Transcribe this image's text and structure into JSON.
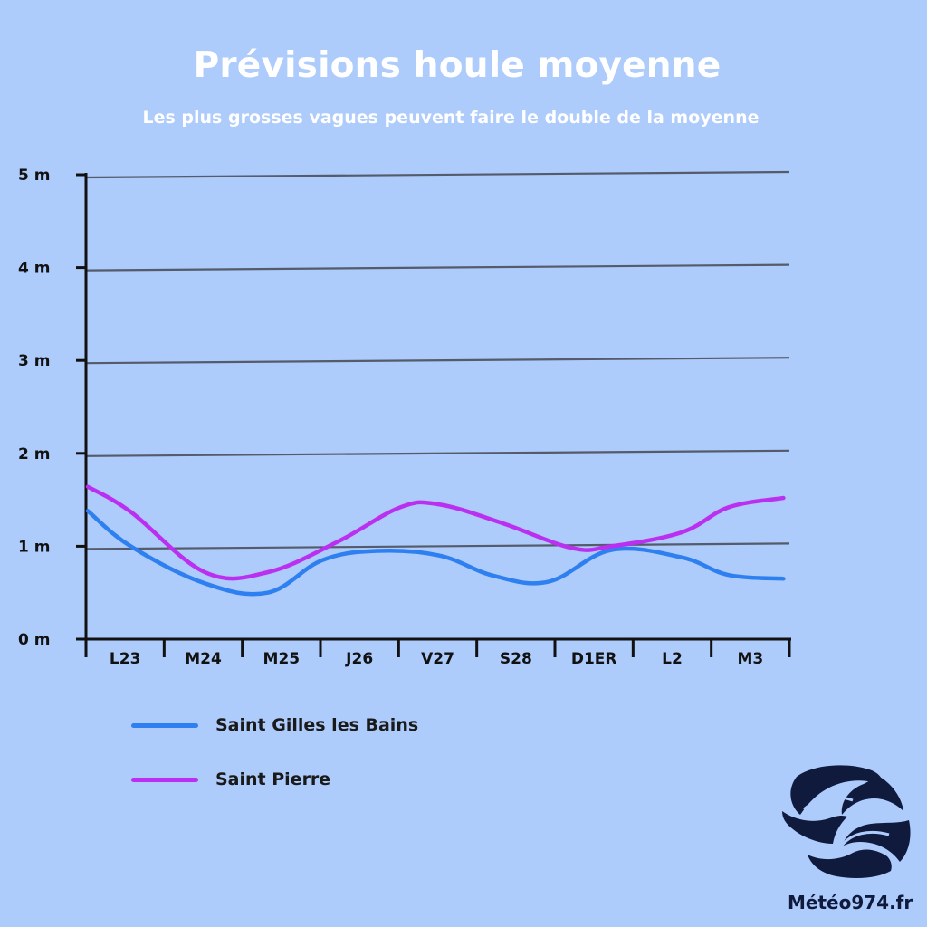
{
  "header": {
    "title": "Prévisions houle moyenne",
    "subtitle": "Les plus grosses vagues peuvent faire le double de la moyenne"
  },
  "chart_data": {
    "type": "line",
    "title": "Prévisions houle moyenne",
    "subtitle": "Les plus grosses vagues peuvent faire le double de la moyenne",
    "categories": [
      "L23",
      "M24",
      "M25",
      "J26",
      "V27",
      "S28",
      "D1ER",
      "L2",
      "M3"
    ],
    "y_ticks": [
      "0 m",
      "1 m",
      "2 m",
      "3 m",
      "4 m",
      "5 m"
    ],
    "ylim": [
      0,
      5
    ],
    "grid": true,
    "legend_position": "bottom-left",
    "series": [
      {
        "name": "Saint Gilles les Bains",
        "color": "#2e7ff0",
        "x": [
          0,
          0.55,
          1.5,
          2.3,
          3.0,
          3.7,
          4.5,
          5.2,
          5.9,
          6.7,
          7.6,
          8.2,
          8.9
        ],
        "values": [
          1.38,
          1.0,
          0.6,
          0.5,
          0.85,
          0.95,
          0.9,
          0.68,
          0.62,
          0.96,
          0.88,
          0.69,
          0.65
        ]
      },
      {
        "name": "Saint Pierre",
        "color": "#bb30f0",
        "x": [
          0,
          0.55,
          1.5,
          2.3,
          3.2,
          4.0,
          4.5,
          5.3,
          6.2,
          6.7,
          7.6,
          8.2,
          8.9
        ],
        "values": [
          1.64,
          1.37,
          0.72,
          0.72,
          1.05,
          1.42,
          1.45,
          1.25,
          0.98,
          1.0,
          1.15,
          1.42,
          1.52
        ]
      }
    ]
  },
  "legend": {
    "items": [
      {
        "label": "Saint Gilles les Bains",
        "color": "#2e7ff0"
      },
      {
        "label": "Saint Pierre",
        "color": "#bb30f0"
      }
    ]
  },
  "brand": {
    "name": "Météo974.fr"
  }
}
